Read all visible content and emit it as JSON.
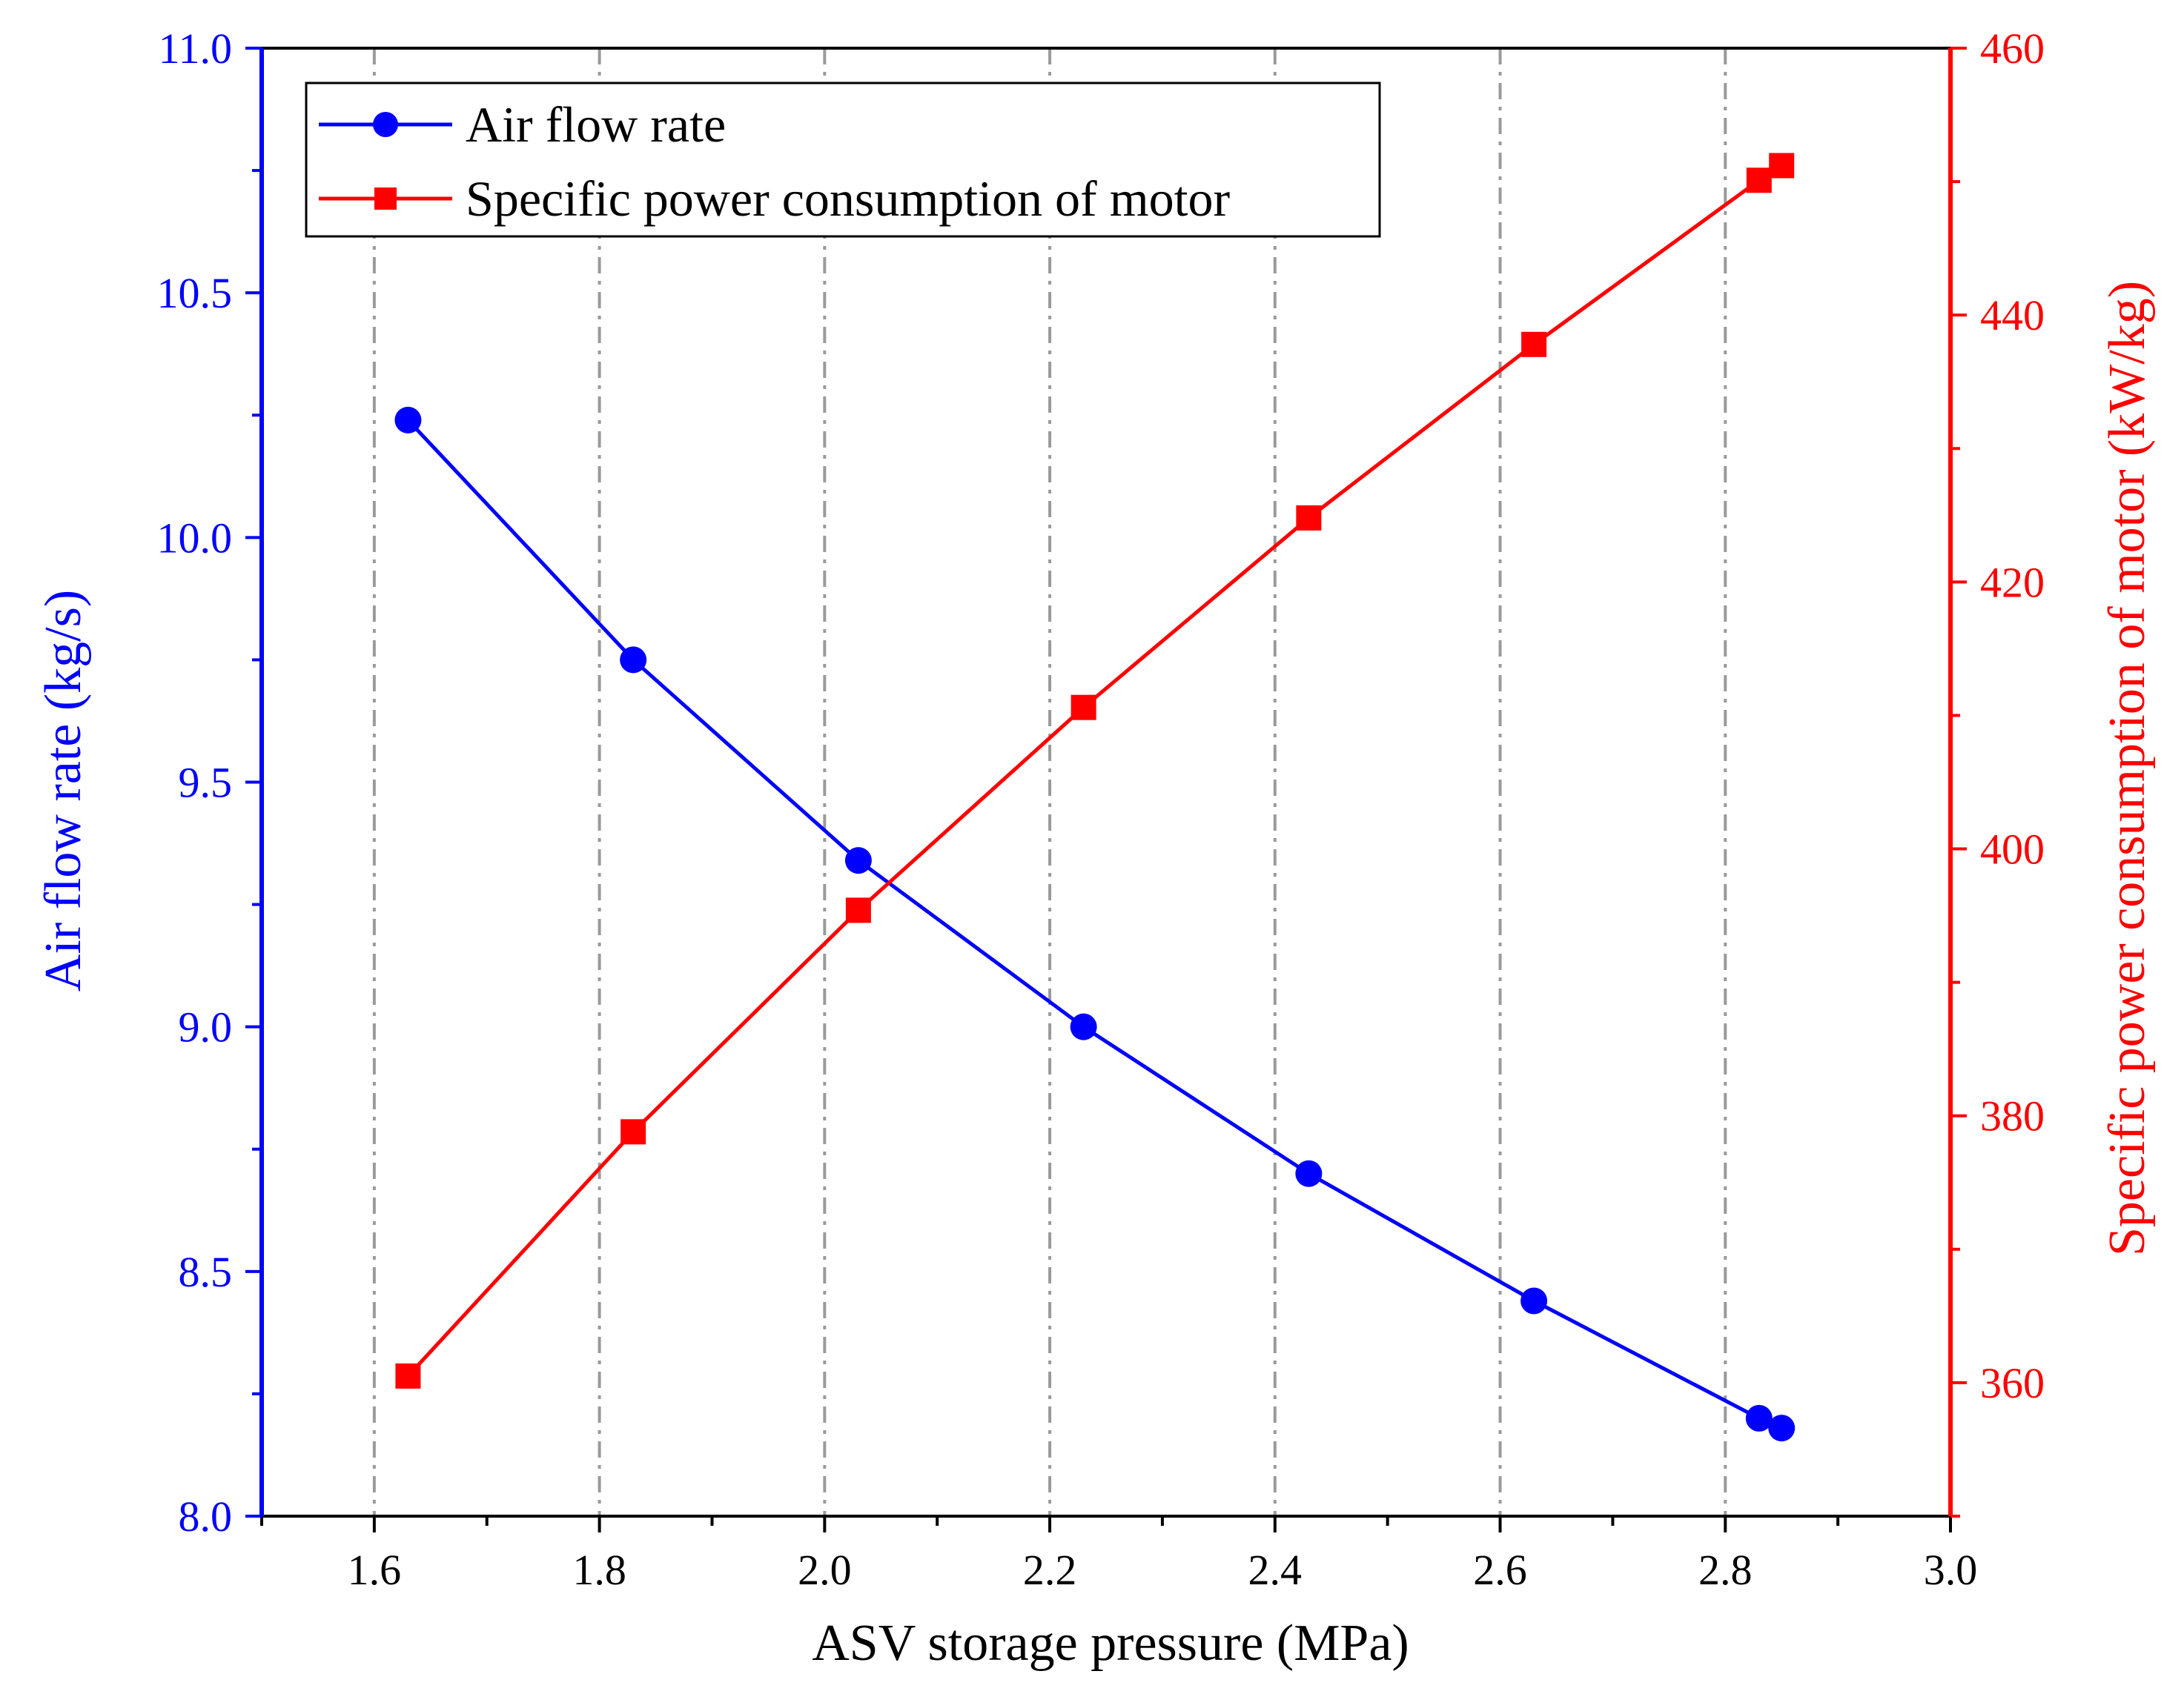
{
  "chart_data": {
    "type": "line",
    "title": "",
    "xlabel": "ASV storage pressure (MPa)",
    "ylabel_left": "Air flow rate (kg/s)",
    "ylabel_right": "Specific power consumption of motor (kW/kg)",
    "xlim": [
      1.5,
      3.0
    ],
    "ylim_left": [
      8.0,
      11.0
    ],
    "ylim_right": [
      350,
      460
    ],
    "grid": "vertical dash-dot at major x ticks",
    "legend_position": "top-left",
    "x_ticks": [
      "1.6",
      "1.8",
      "2.0",
      "2.2",
      "2.4",
      "2.6",
      "2.8",
      "3.0"
    ],
    "y_left_ticks": [
      "8.0",
      "8.5",
      "9.0",
      "9.5",
      "10.0",
      "10.5",
      "11.0"
    ],
    "y_right_ticks": [
      "360",
      "380",
      "400",
      "420",
      "440",
      "460"
    ],
    "series": [
      {
        "name": "Air flow rate",
        "axis": "left",
        "color": "#0000ff",
        "marker": "circle",
        "x": [
          1.63,
          1.83,
          2.03,
          2.23,
          2.43,
          2.63,
          2.83,
          2.85
        ],
        "values": [
          10.24,
          9.75,
          9.34,
          9.0,
          8.7,
          8.44,
          8.2,
          8.18
        ]
      },
      {
        "name": "Specific power consumption of motor",
        "axis": "right",
        "color": "#ff0000",
        "marker": "square",
        "x": [
          1.63,
          1.83,
          2.03,
          2.23,
          2.43,
          2.63,
          2.83,
          2.85
        ],
        "values": [
          360.5,
          378.8,
          395.4,
          410.6,
          424.8,
          437.8,
          450.1,
          451.2
        ]
      }
    ]
  },
  "colors": {
    "left_axis": "#0000ff",
    "right_axis": "#ff0000",
    "grid": "#9a9a9a",
    "axis": "#000000"
  }
}
